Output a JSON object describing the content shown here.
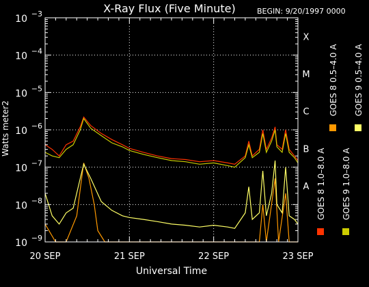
{
  "chart_data": {
    "type": "line",
    "title": "X-Ray Flux (Five Minute)",
    "begin_label": "BEGIN: 9/20/1997 0000",
    "xlabel": "Universal Time",
    "ylabel": "Watts meter2",
    "y_scale": "log",
    "ylim": [
      1e-09,
      0.001
    ],
    "xlim": [
      "1997-09-20T00:00",
      "1997-09-23T00:00"
    ],
    "grid": "dotted",
    "background": "#000000",
    "x_ticks": [
      {
        "t": "1997-09-20T00:00",
        "label": "20 SEP"
      },
      {
        "t": "1997-09-21T00:00",
        "label": "21 SEP"
      },
      {
        "t": "1997-09-22T00:00",
        "label": "22 SEP"
      },
      {
        "t": "1997-09-23T00:00",
        "label": "23 SEP"
      }
    ],
    "y_ticks": [
      {
        "exp": -9,
        "label": "10",
        "sup": "−9"
      },
      {
        "exp": -8,
        "label": "10",
        "sup": "−8"
      },
      {
        "exp": -7,
        "label": "10",
        "sup": "−7"
      },
      {
        "exp": -6,
        "label": "10",
        "sup": "−6"
      },
      {
        "exp": -5,
        "label": "10",
        "sup": "−5"
      },
      {
        "exp": -4,
        "label": "10",
        "sup": "−4"
      },
      {
        "exp": -3,
        "label": "10",
        "sup": "−3"
      }
    ],
    "flare_classes": [
      {
        "label": "X",
        "exp": -4
      },
      {
        "label": "M",
        "exp": -5
      },
      {
        "label": "C",
        "exp": -6
      },
      {
        "label": "B",
        "exp": -7
      },
      {
        "label": "A",
        "exp": -8
      }
    ],
    "legend_position": "right",
    "series": [
      {
        "name": "GOES 8 1.0–8.0 A",
        "color": "#ff3300",
        "points": [
          [
            "1997-09-20T00:00",
            4e-07
          ],
          [
            "1997-09-20T02:00",
            3e-07
          ],
          [
            "1997-09-20T04:00",
            2e-07
          ],
          [
            "1997-09-20T06:00",
            4e-07
          ],
          [
            "1997-09-20T08:00",
            5e-07
          ],
          [
            "1997-09-20T10:00",
            1.2e-06
          ],
          [
            "1997-09-20T11:00",
            2.2e-06
          ],
          [
            "1997-09-20T13:00",
            1.3e-06
          ],
          [
            "1997-09-20T16:00",
            8e-07
          ],
          [
            "1997-09-20T19:00",
            5.5e-07
          ],
          [
            "1997-09-20T22:00",
            4e-07
          ],
          [
            "1997-09-21T00:00",
            3.2e-07
          ],
          [
            "1997-09-21T04:00",
            2.5e-07
          ],
          [
            "1997-09-21T08:00",
            2e-07
          ],
          [
            "1997-09-21T12:00",
            1.7e-07
          ],
          [
            "1997-09-21T16:00",
            1.6e-07
          ],
          [
            "1997-09-21T20:00",
            1.4e-07
          ],
          [
            "1997-09-22T00:00",
            1.5e-07
          ],
          [
            "1997-09-22T04:00",
            1.3e-07
          ],
          [
            "1997-09-22T06:00",
            1.2e-07
          ],
          [
            "1997-09-22T09:00",
            2e-07
          ],
          [
            "1997-09-22T10:00",
            5e-07
          ],
          [
            "1997-09-22T11:00",
            2e-07
          ],
          [
            "1997-09-22T13:00",
            3e-07
          ],
          [
            "1997-09-22T14:00",
            1e-06
          ],
          [
            "1997-09-22T15:00",
            3e-07
          ],
          [
            "1997-09-22T16:30",
            6e-07
          ],
          [
            "1997-09-22T17:30",
            1.2e-06
          ],
          [
            "1997-09-22T18:00",
            4e-07
          ],
          [
            "1997-09-22T19:30",
            3e-07
          ],
          [
            "1997-09-22T20:30",
            1e-06
          ],
          [
            "1997-09-22T21:30",
            3e-07
          ],
          [
            "1997-09-22T23:00",
            2e-07
          ],
          [
            "1997-09-23T00:00",
            1.5e-07
          ]
        ]
      },
      {
        "name": "GOES 8 0.5–4.0 A",
        "color": "#ff9900",
        "points": [
          [
            "1997-09-20T00:00",
            3e-09
          ],
          [
            "1997-09-20T03:00",
            1e-09
          ],
          [
            "1997-09-20T06:00",
            1e-09
          ],
          [
            "1997-09-20T09:00",
            5e-09
          ],
          [
            "1997-09-20T11:00",
            1.3e-07
          ],
          [
            "1997-09-20T12:30",
            5e-08
          ],
          [
            "1997-09-20T14:00",
            1e-08
          ],
          [
            "1997-09-20T15:00",
            2e-09
          ],
          [
            "1997-09-20T17:00",
            1e-09
          ],
          [
            "1997-09-22T13:00",
            1e-09
          ],
          [
            "1997-09-22T14:00",
            1e-08
          ],
          [
            "1997-09-22T15:00",
            1e-09
          ],
          [
            "1997-09-22T17:30",
            5e-08
          ],
          [
            "1997-09-22T18:30",
            1e-09
          ],
          [
            "1997-09-22T20:30",
            2e-08
          ],
          [
            "1997-09-22T21:30",
            1e-09
          ],
          [
            "1997-09-23T00:00",
            1e-09
          ]
        ]
      },
      {
        "name": "GOES 9 1.0–8.0 A",
        "color": "#cccc00",
        "points": [
          [
            "1997-09-20T00:00",
            2.5e-07
          ],
          [
            "1997-09-20T02:00",
            2e-07
          ],
          [
            "1997-09-20T04:00",
            1.8e-07
          ],
          [
            "1997-09-20T06:00",
            3e-07
          ],
          [
            "1997-09-20T08:00",
            4e-07
          ],
          [
            "1997-09-20T10:00",
            1e-06
          ],
          [
            "1997-09-20T11:00",
            2e-06
          ],
          [
            "1997-09-20T13:00",
            1.1e-06
          ],
          [
            "1997-09-20T16:00",
            7e-07
          ],
          [
            "1997-09-20T19:00",
            4.5e-07
          ],
          [
            "1997-09-20T22:00",
            3.5e-07
          ],
          [
            "1997-09-21T00:00",
            2.8e-07
          ],
          [
            "1997-09-21T04:00",
            2.2e-07
          ],
          [
            "1997-09-21T08:00",
            1.8e-07
          ],
          [
            "1997-09-21T12:00",
            1.5e-07
          ],
          [
            "1997-09-21T16:00",
            1.4e-07
          ],
          [
            "1997-09-21T20:00",
            1.2e-07
          ],
          [
            "1997-09-22T00:00",
            1.3e-07
          ],
          [
            "1997-09-22T04:00",
            1.1e-07
          ],
          [
            "1997-09-22T06:00",
            1e-07
          ],
          [
            "1997-09-22T09:00",
            1.8e-07
          ],
          [
            "1997-09-22T10:00",
            4e-07
          ],
          [
            "1997-09-22T11:00",
            1.8e-07
          ],
          [
            "1997-09-22T13:00",
            2.5e-07
          ],
          [
            "1997-09-22T14:00",
            8e-07
          ],
          [
            "1997-09-22T15:00",
            2.5e-07
          ],
          [
            "1997-09-22T16:30",
            5e-07
          ],
          [
            "1997-09-22T17:30",
            1e-06
          ],
          [
            "1997-09-22T18:00",
            3.5e-07
          ],
          [
            "1997-09-22T19:30",
            2.5e-07
          ],
          [
            "1997-09-22T20:30",
            8e-07
          ],
          [
            "1997-09-22T21:30",
            2.5e-07
          ],
          [
            "1997-09-22T23:00",
            1.8e-07
          ],
          [
            "1997-09-23T00:00",
            1.3e-07
          ]
        ]
      },
      {
        "name": "GOES 9 0.5–4.0 A",
        "color": "#ffff66",
        "points": [
          [
            "1997-09-20T00:00",
            2e-08
          ],
          [
            "1997-09-20T02:00",
            5e-09
          ],
          [
            "1997-09-20T04:00",
            3e-09
          ],
          [
            "1997-09-20T06:00",
            6e-09
          ],
          [
            "1997-09-20T08:00",
            8e-09
          ],
          [
            "1997-09-20T10:00",
            5e-08
          ],
          [
            "1997-09-20T11:00",
            1.2e-07
          ],
          [
            "1997-09-20T13:00",
            5e-08
          ],
          [
            "1997-09-20T16:00",
            1.2e-08
          ],
          [
            "1997-09-20T19:00",
            7e-09
          ],
          [
            "1997-09-20T22:00",
            5e-09
          ],
          [
            "1997-09-21T00:00",
            4.5e-09
          ],
          [
            "1997-09-21T04:00",
            4e-09
          ],
          [
            "1997-09-21T08:00",
            3.5e-09
          ],
          [
            "1997-09-21T12:00",
            3e-09
          ],
          [
            "1997-09-21T16:00",
            2.8e-09
          ],
          [
            "1997-09-21T20:00",
            2.5e-09
          ],
          [
            "1997-09-22T00:00",
            2.8e-09
          ],
          [
            "1997-09-22T04:00",
            2.5e-09
          ],
          [
            "1997-09-22T06:00",
            2.3e-09
          ],
          [
            "1997-09-22T09:00",
            6e-09
          ],
          [
            "1997-09-22T10:00",
            3e-08
          ],
          [
            "1997-09-22T11:00",
            4e-09
          ],
          [
            "1997-09-22T13:00",
            6e-09
          ],
          [
            "1997-09-22T14:00",
            8e-08
          ],
          [
            "1997-09-22T15:00",
            5e-09
          ],
          [
            "1997-09-22T16:30",
            2e-08
          ],
          [
            "1997-09-22T17:30",
            1.5e-07
          ],
          [
            "1997-09-22T18:00",
            1e-08
          ],
          [
            "1997-09-22T19:30",
            6e-09
          ],
          [
            "1997-09-22T20:30",
            1e-07
          ],
          [
            "1997-09-22T21:30",
            5e-09
          ],
          [
            "1997-09-22T23:00",
            4e-09
          ],
          [
            "1997-09-23T00:00",
            3e-09
          ]
        ]
      }
    ]
  }
}
